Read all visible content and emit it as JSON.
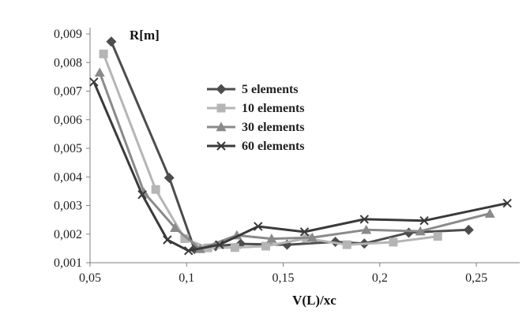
{
  "chart_data": {
    "type": "line",
    "title": "",
    "xlabel": "V(L)/xc",
    "ylabel": "R[m]",
    "xlim": [
      0.05,
      0.27
    ],
    "ylim": [
      0.001,
      0.009
    ],
    "xticks": [
      0.05,
      0.1,
      0.15,
      0.2,
      0.25
    ],
    "xtick_labels": [
      "0,05",
      "0,1",
      "0,15",
      "0,2",
      "0,25"
    ],
    "yticks": [
      0.001,
      0.002,
      0.003,
      0.004,
      0.005,
      0.006,
      0.007,
      0.008,
      0.009
    ],
    "ytick_labels": [
      "0,001",
      "0,002",
      "0,003",
      "0,004",
      "0,005",
      "0,006",
      "0,007",
      "0,008",
      "0,009"
    ],
    "grid": false,
    "legend_position": "center-right",
    "series": [
      {
        "name": "5 elements",
        "marker": "diamond",
        "color": "#4d4d4d",
        "x": [
          0.061,
          0.091,
          0.104,
          0.115,
          0.128,
          0.152,
          0.177,
          0.192,
          0.215,
          0.246
        ],
        "y": [
          0.00873,
          0.00397,
          0.00148,
          0.00158,
          0.00166,
          0.00163,
          0.00173,
          0.00167,
          0.00205,
          0.00215
        ]
      },
      {
        "name": "10 elements",
        "marker": "square",
        "color": "#b5b5b5",
        "x": [
          0.057,
          0.084,
          0.099,
          0.111,
          0.125,
          0.141,
          0.162,
          0.183,
          0.207,
          0.23
        ],
        "y": [
          0.0083,
          0.00356,
          0.00184,
          0.00152,
          0.00153,
          0.00158,
          0.00185,
          0.00163,
          0.00172,
          0.00192
        ]
      },
      {
        "name": "30 elements",
        "marker": "triangle",
        "color": "#8a8a8a",
        "x": [
          0.055,
          0.078,
          0.094,
          0.107,
          0.126,
          0.144,
          0.165,
          0.193,
          0.221,
          0.257
        ],
        "y": [
          0.00765,
          0.00345,
          0.00222,
          0.00148,
          0.00196,
          0.00184,
          0.00188,
          0.00215,
          0.0021,
          0.00272
        ]
      },
      {
        "name": "60 elements",
        "marker": "x",
        "color": "#3a3a3a",
        "x": [
          0.052,
          0.077,
          0.09,
          0.101,
          0.117,
          0.137,
          0.161,
          0.192,
          0.223,
          0.266
        ],
        "y": [
          0.00732,
          0.00338,
          0.0018,
          0.00142,
          0.00163,
          0.00227,
          0.00208,
          0.00252,
          0.00247,
          0.00308
        ]
      }
    ]
  }
}
